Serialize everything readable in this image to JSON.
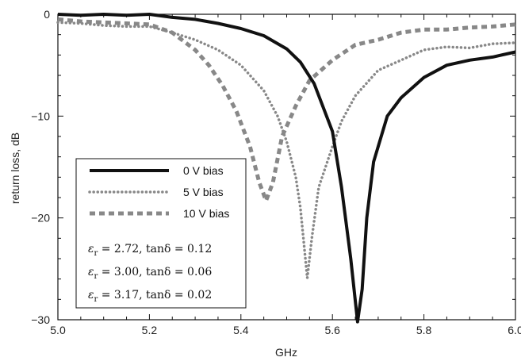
{
  "chart_data": {
    "type": "line",
    "xlabel": "GHz",
    "ylabel": "return loss, dB",
    "xlim": [
      5.0,
      6.0
    ],
    "ylim": [
      -30,
      0
    ],
    "xticks": [
      "5.0",
      "5.2",
      "5.4",
      "5.6",
      "5.8",
      "6.0"
    ],
    "yticks": [
      "0",
      "−10",
      "−20",
      "−30"
    ],
    "grid": false,
    "legend_position": "bottom-left",
    "series": [
      {
        "name": "0 V bias",
        "style": "solid",
        "color": "#111111",
        "x": [
          5.0,
          5.05,
          5.1,
          5.15,
          5.2,
          5.25,
          5.3,
          5.35,
          5.4,
          5.45,
          5.5,
          5.53,
          5.56,
          5.6,
          5.62,
          5.64,
          5.655,
          5.665,
          5.675,
          5.69,
          5.72,
          5.75,
          5.8,
          5.85,
          5.9,
          5.95,
          6.0
        ],
        "y": [
          0.0,
          -0.1,
          0.0,
          -0.1,
          0.0,
          -0.3,
          -0.5,
          -0.9,
          -1.4,
          -2.1,
          -3.4,
          -4.7,
          -6.8,
          -11.5,
          -17.0,
          -24.0,
          -30.2,
          -27.0,
          -20.0,
          -14.5,
          -10.0,
          -8.2,
          -6.2,
          -5.0,
          -4.5,
          -4.2,
          -3.7
        ]
      },
      {
        "name": "5 V bias",
        "style": "dotted",
        "color": "#888888",
        "x": [
          5.0,
          5.05,
          5.1,
          5.15,
          5.2,
          5.25,
          5.3,
          5.35,
          5.4,
          5.45,
          5.48,
          5.5,
          5.52,
          5.53,
          5.545,
          5.555,
          5.57,
          5.6,
          5.62,
          5.65,
          5.7,
          5.75,
          5.8,
          5.85,
          5.9,
          5.95,
          6.0
        ],
        "y": [
          -0.8,
          -0.9,
          -1.1,
          -1.2,
          -1.2,
          -1.8,
          -2.5,
          -3.5,
          -5.0,
          -7.5,
          -10.0,
          -12.5,
          -16.0,
          -19.0,
          -25.9,
          -22.0,
          -17.0,
          -13.0,
          -10.5,
          -8.0,
          -5.5,
          -4.5,
          -3.5,
          -3.2,
          -3.3,
          -2.9,
          -2.8
        ]
      },
      {
        "name": "10 V bias",
        "style": "dashed",
        "color": "#888888",
        "x": [
          5.0,
          5.05,
          5.1,
          5.15,
          5.2,
          5.25,
          5.3,
          5.33,
          5.36,
          5.39,
          5.42,
          5.44,
          5.455,
          5.47,
          5.49,
          5.52,
          5.55,
          5.6,
          5.65,
          5.7,
          5.75,
          5.8,
          5.85,
          5.9,
          5.95,
          6.0
        ],
        "y": [
          -0.5,
          -0.7,
          -0.8,
          -0.9,
          -1.0,
          -1.8,
          -3.5,
          -5.0,
          -7.0,
          -9.5,
          -13.0,
          -16.5,
          -18.3,
          -16.5,
          -12.0,
          -9.0,
          -6.5,
          -4.5,
          -3.0,
          -2.5,
          -1.8,
          -1.5,
          -1.5,
          -1.3,
          -1.2,
          -1.0
        ]
      }
    ],
    "annotations": [
      {
        "sym": "ε",
        "sub": "r",
        "text": " = 2.72, tanδ = 0.12"
      },
      {
        "sym": "ε",
        "sub": "r",
        "text": " = 3.00, tanδ = 0.06"
      },
      {
        "sym": "ε",
        "sub": "r",
        "text": " = 3.17, tanδ = 0.02"
      }
    ]
  }
}
